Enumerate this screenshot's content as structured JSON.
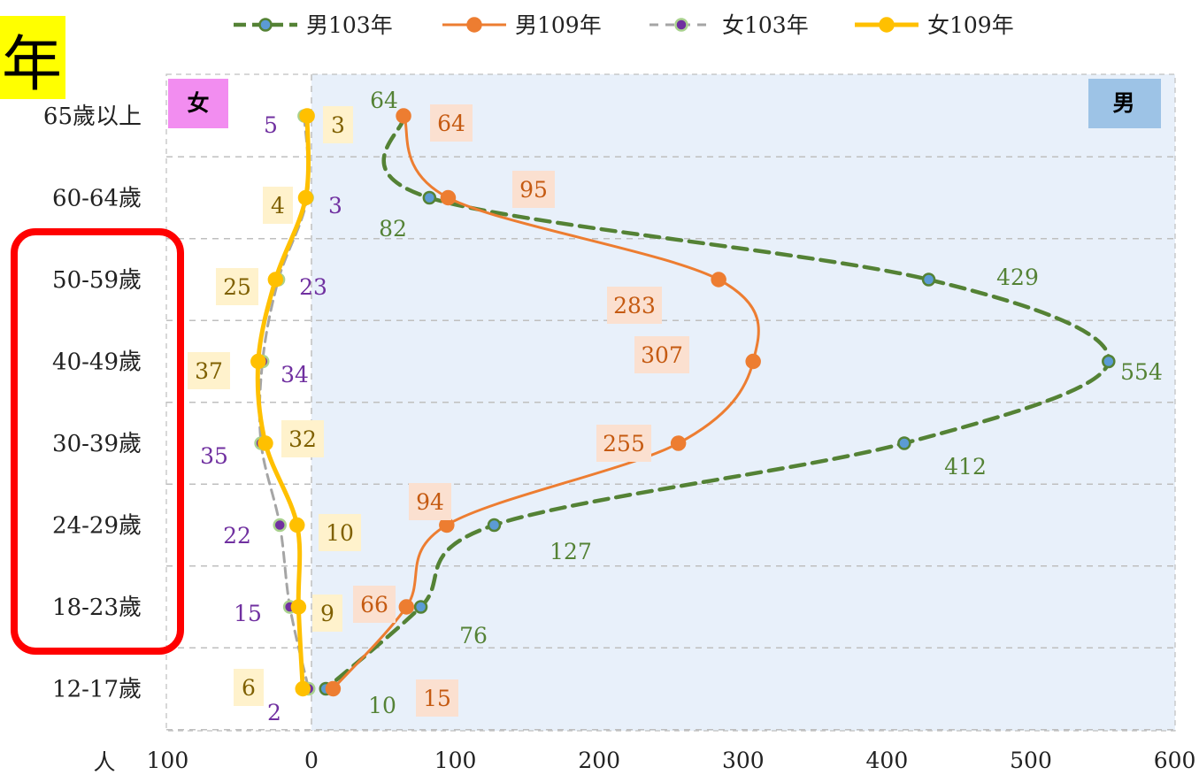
{
  "corner_label": "年",
  "chart_data": {
    "type": "line",
    "orientation": "horizontal",
    "categories": [
      "65歲以上",
      "60-64歲",
      "50-59歲",
      "40-49歲",
      "30-39歲",
      "24-29歲",
      "18-23歲",
      "12-17歲"
    ],
    "x_unit": "人",
    "xlim": [
      -100,
      600
    ],
    "x_ticks": [
      -100,
      0,
      100,
      200,
      300,
      400,
      500,
      600
    ],
    "x_tick_labels": [
      "100",
      "0",
      "100",
      "200",
      "300",
      "400",
      "500",
      "600"
    ],
    "grid": "horizontal dashed",
    "legend_position": "top",
    "region_labels": {
      "left": "女",
      "right": "男"
    },
    "series": [
      {
        "name": "男103年",
        "side": "male",
        "values": [
          64,
          82,
          429,
          554,
          412,
          127,
          76,
          10
        ],
        "labels": [
          "64",
          "82",
          "429",
          "554",
          "412",
          "127",
          "76",
          "10"
        ],
        "color": "#548235",
        "style": "dashed"
      },
      {
        "name": "男109年",
        "side": "male",
        "values": [
          64,
          95,
          283,
          307,
          255,
          94,
          66,
          15
        ],
        "labels": [
          "64",
          "95",
          "283",
          "307",
          "255",
          "94",
          "66",
          "15"
        ],
        "color": "#ED7D31",
        "style": "solid"
      },
      {
        "name": "女103年",
        "side": "female",
        "values": [
          5,
          3,
          23,
          34,
          35,
          22,
          15,
          2
        ],
        "labels": [
          "5",
          "3",
          "23",
          "34",
          "35",
          "22",
          "15",
          "2"
        ],
        "color": "#A5A5A5",
        "style": "dashed"
      },
      {
        "name": "女109年",
        "side": "female",
        "values": [
          3,
          4,
          25,
          37,
          32,
          10,
          9,
          6
        ],
        "labels": [
          "3",
          "4",
          "25",
          "37",
          "32",
          "10",
          "9",
          "6"
        ],
        "color": "#FFC000",
        "style": "solid"
      }
    ],
    "highlight_categories": [
      "50-59歲",
      "40-49歲",
      "30-39歲",
      "24-29歲",
      "18-23歲"
    ]
  }
}
